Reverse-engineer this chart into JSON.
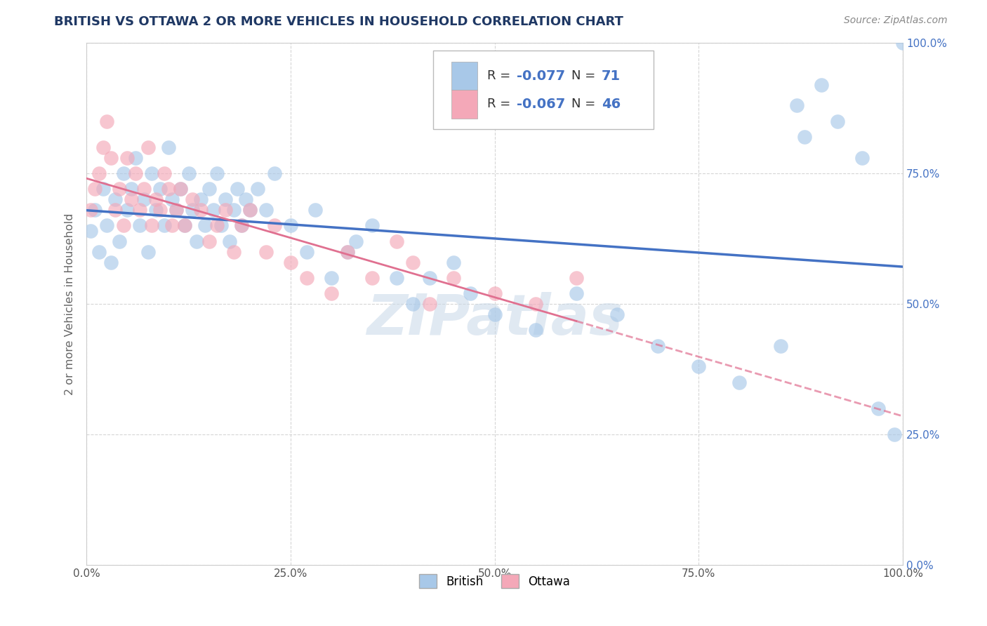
{
  "title": "BRITISH VS OTTAWA 2 OR MORE VEHICLES IN HOUSEHOLD CORRELATION CHART",
  "source": "Source: ZipAtlas.com",
  "ylabel": "2 or more Vehicles in Household",
  "watermark": "ZIPatlas",
  "xlim": [
    0.0,
    1.0
  ],
  "ylim": [
    0.0,
    1.0
  ],
  "xticks": [
    0.0,
    0.25,
    0.5,
    0.75,
    1.0
  ],
  "yticks": [
    0.0,
    0.25,
    0.5,
    0.75,
    1.0
  ],
  "xtick_labels": [
    "0.0%",
    "25.0%",
    "50.0%",
    "75.0%",
    "100.0%"
  ],
  "ytick_labels": [
    "0.0%",
    "25.0%",
    "50.0%",
    "75.0%",
    "100.0%"
  ],
  "british_R": "-0.077",
  "british_N": "71",
  "ottawa_R": "-0.067",
  "ottawa_N": "46",
  "british_color": "#a8c8e8",
  "ottawa_color": "#f4a8b8",
  "british_line_color": "#4472c4",
  "ottawa_line_color": "#e07090",
  "title_color": "#1f3864",
  "axis_label_color": "#666666",
  "grid_color": "#cccccc",
  "ytick_right_color": "#4472c4",
  "british_x": [
    0.005,
    0.01,
    0.015,
    0.02,
    0.025,
    0.03,
    0.035,
    0.04,
    0.045,
    0.05,
    0.055,
    0.06,
    0.065,
    0.07,
    0.075,
    0.08,
    0.085,
    0.09,
    0.095,
    0.1,
    0.105,
    0.11,
    0.115,
    0.12,
    0.125,
    0.13,
    0.135,
    0.14,
    0.145,
    0.15,
    0.155,
    0.16,
    0.165,
    0.17,
    0.175,
    0.18,
    0.185,
    0.19,
    0.195,
    0.2,
    0.21,
    0.22,
    0.23,
    0.25,
    0.27,
    0.28,
    0.3,
    0.32,
    0.33,
    0.35,
    0.38,
    0.4,
    0.42,
    0.45,
    0.47,
    0.5,
    0.55,
    0.6,
    0.65,
    0.7,
    0.75,
    0.8,
    0.85,
    0.87,
    0.88,
    0.9,
    0.92,
    0.95,
    0.97,
    0.99,
    1.0
  ],
  "british_y": [
    0.64,
    0.68,
    0.6,
    0.72,
    0.65,
    0.58,
    0.7,
    0.62,
    0.75,
    0.68,
    0.72,
    0.78,
    0.65,
    0.7,
    0.6,
    0.75,
    0.68,
    0.72,
    0.65,
    0.8,
    0.7,
    0.68,
    0.72,
    0.65,
    0.75,
    0.68,
    0.62,
    0.7,
    0.65,
    0.72,
    0.68,
    0.75,
    0.65,
    0.7,
    0.62,
    0.68,
    0.72,
    0.65,
    0.7,
    0.68,
    0.72,
    0.68,
    0.75,
    0.65,
    0.6,
    0.68,
    0.55,
    0.6,
    0.62,
    0.65,
    0.55,
    0.5,
    0.55,
    0.58,
    0.52,
    0.48,
    0.45,
    0.52,
    0.48,
    0.42,
    0.38,
    0.35,
    0.42,
    0.88,
    0.82,
    0.92,
    0.85,
    0.78,
    0.3,
    0.25,
    1.0
  ],
  "ottawa_x": [
    0.005,
    0.01,
    0.015,
    0.02,
    0.025,
    0.03,
    0.035,
    0.04,
    0.045,
    0.05,
    0.055,
    0.06,
    0.065,
    0.07,
    0.075,
    0.08,
    0.085,
    0.09,
    0.095,
    0.1,
    0.105,
    0.11,
    0.115,
    0.12,
    0.13,
    0.14,
    0.15,
    0.16,
    0.17,
    0.18,
    0.19,
    0.2,
    0.22,
    0.23,
    0.25,
    0.27,
    0.3,
    0.32,
    0.35,
    0.38,
    0.4,
    0.42,
    0.45,
    0.5,
    0.55,
    0.6
  ],
  "ottawa_y": [
    0.68,
    0.72,
    0.75,
    0.8,
    0.85,
    0.78,
    0.68,
    0.72,
    0.65,
    0.78,
    0.7,
    0.75,
    0.68,
    0.72,
    0.8,
    0.65,
    0.7,
    0.68,
    0.75,
    0.72,
    0.65,
    0.68,
    0.72,
    0.65,
    0.7,
    0.68,
    0.62,
    0.65,
    0.68,
    0.6,
    0.65,
    0.68,
    0.6,
    0.65,
    0.58,
    0.55,
    0.52,
    0.6,
    0.55,
    0.62,
    0.58,
    0.5,
    0.55,
    0.52,
    0.5,
    0.55
  ]
}
